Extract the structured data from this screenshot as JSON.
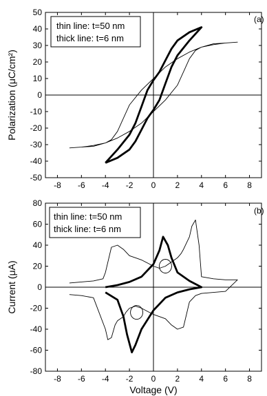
{
  "chart_data": [
    {
      "type": "line",
      "panel_label": "(a)",
      "ylabel": "Polarization (μC/cm²)",
      "xlabel": "",
      "xlim": [
        -9,
        9
      ],
      "ylim": [
        -50,
        50
      ],
      "xticks": [
        -8,
        -6,
        -4,
        -2,
        0,
        2,
        4,
        6,
        8
      ],
      "yticks": [
        -50,
        -40,
        -30,
        -20,
        -10,
        0,
        10,
        20,
        30,
        40,
        50
      ],
      "legend_lines": [
        "thin line: t=50 nm",
        "thick line: t=6 nm"
      ],
      "legend_position": "top-left",
      "series": [
        {
          "name": "thin line: t=50 nm",
          "x": [
            -7,
            -6,
            -5,
            -4,
            -3,
            -2,
            -1,
            0,
            1,
            2,
            2.5,
            3,
            3.5,
            4,
            5,
            6,
            7,
            6,
            5,
            4,
            3,
            2,
            1,
            0,
            -1,
            -2,
            -2.5,
            -3,
            -3.5,
            -4,
            -5,
            -6,
            -7
          ],
          "y": [
            -32,
            -31.5,
            -31,
            -29,
            -26,
            -22,
            -17,
            -10,
            -3,
            6,
            14,
            22,
            27,
            29,
            30.5,
            31.5,
            32,
            31.5,
            31,
            29,
            26,
            22,
            17,
            10,
            3,
            -6,
            -14,
            -22,
            -27,
            -29,
            -30.5,
            -31.5,
            -32
          ]
        },
        {
          "name": "thick line: t=6 nm",
          "x": [
            -4,
            -3,
            -2,
            -1.5,
            -1,
            -0.5,
            0,
            0.5,
            1,
            1.5,
            2,
            3,
            4,
            3,
            2,
            1.5,
            1,
            0.5,
            0,
            -0.5,
            -1,
            -1.5,
            -2,
            -3,
            -4
          ],
          "y": [
            -41,
            -38,
            -33,
            -28,
            -21,
            -14,
            -9,
            -3,
            7,
            17,
            24,
            33,
            41,
            38,
            33,
            28,
            21,
            14,
            9,
            3,
            -7,
            -17,
            -24,
            -33,
            -41
          ]
        }
      ]
    },
    {
      "type": "line",
      "panel_label": "(b)",
      "ylabel": "Current (μA)",
      "xlabel": "Voltage (V)",
      "xlim": [
        -9,
        9
      ],
      "ylim": [
        -80,
        80
      ],
      "xticks": [
        -8,
        -6,
        -4,
        -2,
        0,
        2,
        4,
        6,
        8
      ],
      "yticks": [
        -80,
        -60,
        -40,
        -20,
        0,
        20,
        40,
        60,
        80
      ],
      "legend_lines": [
        "thin line: t=50 nm",
        "thick line: t=6 nm"
      ],
      "legend_position": "top-left",
      "series": [
        {
          "name": "thin line: t=50 nm",
          "x": [
            -7,
            -6,
            -5,
            -4.2,
            -4,
            -3.5,
            -3,
            -2.5,
            -2,
            -1.5,
            -1,
            -0.5,
            0,
            0.5,
            1,
            1.5,
            2,
            2.3,
            2.5,
            3,
            3.2,
            3.5,
            3.8,
            4,
            5,
            6,
            7,
            6,
            5,
            4,
            3.5,
            3,
            2.5,
            2,
            1.5,
            1,
            0.5,
            0,
            -0.5,
            -1,
            -1.5,
            -2,
            -2.3,
            -2.5,
            -3,
            -3.2,
            -3.5,
            -3.8,
            -4,
            -5,
            -6,
            -7
          ],
          "y": [
            4,
            5,
            6,
            8,
            14,
            38,
            40,
            36,
            30,
            28,
            26,
            23,
            20,
            18,
            20,
            24,
            28,
            32,
            36,
            48,
            58,
            64,
            40,
            10,
            8,
            7,
            7,
            -4,
            -5,
            -6,
            -8,
            -14,
            -38,
            -40,
            -36,
            -30,
            -28,
            -26,
            -23,
            -20,
            -18,
            -20,
            -24,
            -28,
            -32,
            -36,
            -48,
            -50,
            -40,
            -10,
            -8,
            -7
          ]
        },
        {
          "name": "thick line: t=6 nm",
          "x": [
            -4,
            -3,
            -2,
            -1,
            0,
            0.5,
            0.8,
            1.2,
            1.5,
            2,
            3,
            4,
            3,
            2,
            1,
            0,
            -1,
            -1.5,
            -1.8,
            -2.2,
            -2.5,
            -3,
            -4
          ],
          "y": [
            0,
            2,
            5,
            10,
            22,
            35,
            48,
            40,
            28,
            14,
            6,
            0,
            -2,
            -5,
            -10,
            -22,
            -40,
            -55,
            -62,
            -45,
            -28,
            -12,
            -5
          ]
        }
      ],
      "annotations": [
        "circle",
        "circle"
      ]
    }
  ]
}
